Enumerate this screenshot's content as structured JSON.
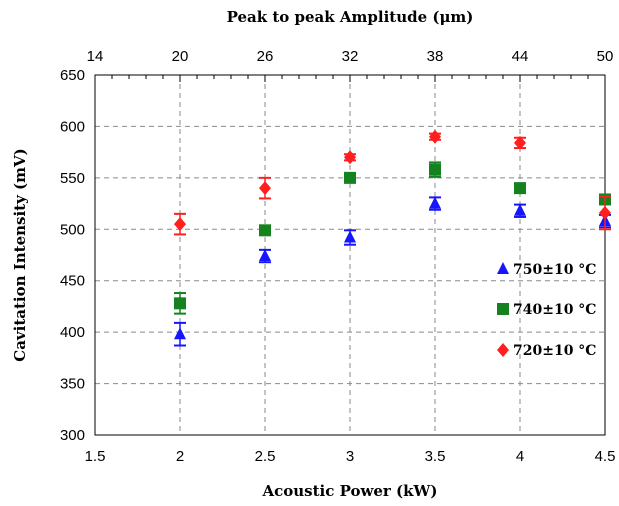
{
  "chart_data": {
    "type": "scatter",
    "title": "",
    "xlabel": "Acoustic Power (kW)",
    "ylabel": "Cavitation Intensity (mV)",
    "x2label": "Peak to peak Amplitude (μm)",
    "xlim": [
      1.5,
      4.5
    ],
    "ylim": [
      300,
      650
    ],
    "x_ticks": [
      "1.5",
      "2",
      "2.5",
      "3",
      "3.5",
      "4",
      "4.5"
    ],
    "y_ticks": [
      "300",
      "350",
      "400",
      "450",
      "500",
      "550",
      "600",
      "650"
    ],
    "x2_ticks": [
      "14",
      "20",
      "26",
      "32",
      "38",
      "44",
      "50"
    ],
    "x2_tick_positions": [
      1.5,
      2.0,
      2.5,
      3.0,
      3.5,
      4.0,
      4.5
    ],
    "grid": true,
    "legend_position": "right",
    "series": [
      {
        "name": "750±10 °C",
        "marker": "triangle",
        "color": "#1515ff",
        "x": [
          2.0,
          2.5,
          3.0,
          3.5,
          4.0,
          4.5
        ],
        "y": [
          398,
          474,
          492,
          525,
          518,
          508
        ],
        "err": [
          11,
          6,
          7,
          6,
          6,
          6
        ]
      },
      {
        "name": "740±10 °C",
        "marker": "square",
        "color": "#14821e",
        "x": [
          2.0,
          2.5,
          3.0,
          3.5,
          4.0,
          4.5
        ],
        "y": [
          428,
          499,
          550,
          558,
          540,
          529
        ],
        "err": [
          10,
          3,
          3,
          7,
          4,
          3
        ]
      },
      {
        "name": "720±10 °C",
        "marker": "diamond",
        "color": "#ff1f1f",
        "x": [
          2.0,
          2.5,
          3.0,
          3.5,
          4.0,
          4.5
        ],
        "y": [
          505,
          540,
          570,
          590,
          584,
          516
        ],
        "err": [
          10,
          10,
          3,
          3,
          5,
          16
        ]
      }
    ]
  }
}
